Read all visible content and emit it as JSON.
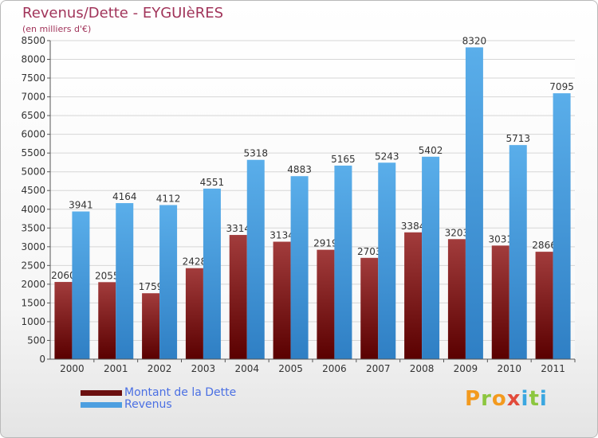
{
  "header": {
    "title": "Revenus/Dette - EYGUIèRES",
    "subtitle": "(en milliers d'€)"
  },
  "colors": {
    "title": "#a1345a",
    "dette": "#7a1e1e",
    "revenus": "#4d9fe0",
    "legend_text": "#4a6fe3"
  },
  "legend": [
    {
      "label": "Montant de la Dette",
      "color": "#6b0f0f"
    },
    {
      "label": "Revenus",
      "color": "#4d9fe0"
    }
  ],
  "logo": {
    "letters": [
      "P",
      "r",
      "o",
      "x",
      "i",
      "t",
      "i"
    ],
    "colors": [
      "#f39a1e",
      "#8cc63f",
      "#f39a1e",
      "#e24b3b",
      "#3ba7e0",
      "#8cc63f",
      "#3ba7e0"
    ]
  },
  "chart_data": {
    "type": "bar",
    "title": "Revenus/Dette - EYGUIèRES",
    "subtitle": "(en milliers d'€)",
    "categories": [
      "2000",
      "2001",
      "2002",
      "2003",
      "2004",
      "2005",
      "2006",
      "2007",
      "2008",
      "2009",
      "2010",
      "2011"
    ],
    "series": [
      {
        "name": "Montant de la Dette",
        "values": [
          2060,
          2055,
          1759,
          2428,
          3314,
          3134,
          2919,
          2703,
          3384,
          3203,
          3031,
          2866
        ]
      },
      {
        "name": "Revenus",
        "values": [
          3941,
          4164,
          4112,
          4551,
          5318,
          4883,
          5165,
          5243,
          5402,
          8320,
          5713,
          7095
        ]
      }
    ],
    "ylim": [
      0,
      8500
    ],
    "yticks": [
      0,
      500,
      1000,
      1500,
      2000,
      2500,
      3000,
      3500,
      4000,
      4500,
      5000,
      5500,
      6000,
      6500,
      7000,
      7500,
      8000,
      8500
    ],
    "grid": true,
    "legend_position": "bottom-left"
  }
}
